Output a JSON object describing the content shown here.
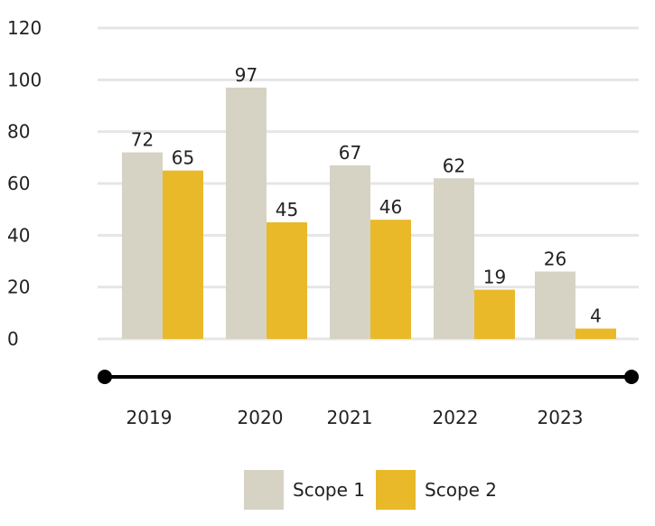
{
  "chart_data": {
    "type": "bar",
    "categories": [
      "2019",
      "2020",
      "2021",
      "2022",
      "2023"
    ],
    "series": [
      {
        "name": "Scope 1",
        "values": [
          72,
          97,
          67,
          62,
          26
        ],
        "color": "#d6d3c4"
      },
      {
        "name": "Scope 2",
        "values": [
          65,
          45,
          46,
          19,
          4
        ],
        "color": "#e9b92a"
      }
    ],
    "yticks": [
      "0",
      "20",
      "40",
      "60",
      "80",
      "100",
      "120"
    ],
    "ylim": [
      0,
      120
    ],
    "grid": true,
    "legend_position": "bottom",
    "timeline_color": "#000000",
    "gridline_color": "#e6e6e6"
  }
}
